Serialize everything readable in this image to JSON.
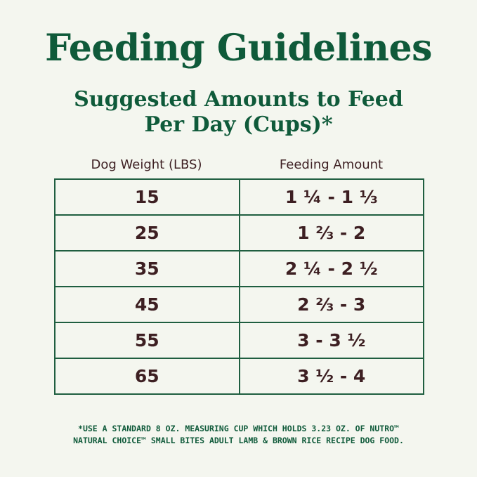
{
  "title": "Feeding Guidelines",
  "subtitle_line1": "Suggested Amounts to Feed",
  "subtitle_line2": "Per Day (Cups)*",
  "table": {
    "headers": [
      "Dog Weight (LBS)",
      "Feeding Amount"
    ],
    "rows": [
      [
        "15",
        "1 ¼ - 1 ⅓"
      ],
      [
        "25",
        "1 ⅔ - 2"
      ],
      [
        "35",
        "2 ¼ - 2 ½"
      ],
      [
        "45",
        "2 ⅔ - 3"
      ],
      [
        "55",
        "3 - 3 ½"
      ],
      [
        "65",
        "3 ½ - 4"
      ]
    ]
  },
  "footnote_line1": "*USE A STANDARD 8 OZ. MEASURING CUP WHICH HOLDS 3.23 OZ. OF NUTRO™",
  "footnote_line2": "NATURAL CHOICE™ SMALL BITES ADULT LAMB & BROWN RICE RECIPE DOG FOOD.",
  "colors": {
    "green": "#0f5a3a",
    "brown": "#3d1f22",
    "background": "#f4f6ef"
  }
}
